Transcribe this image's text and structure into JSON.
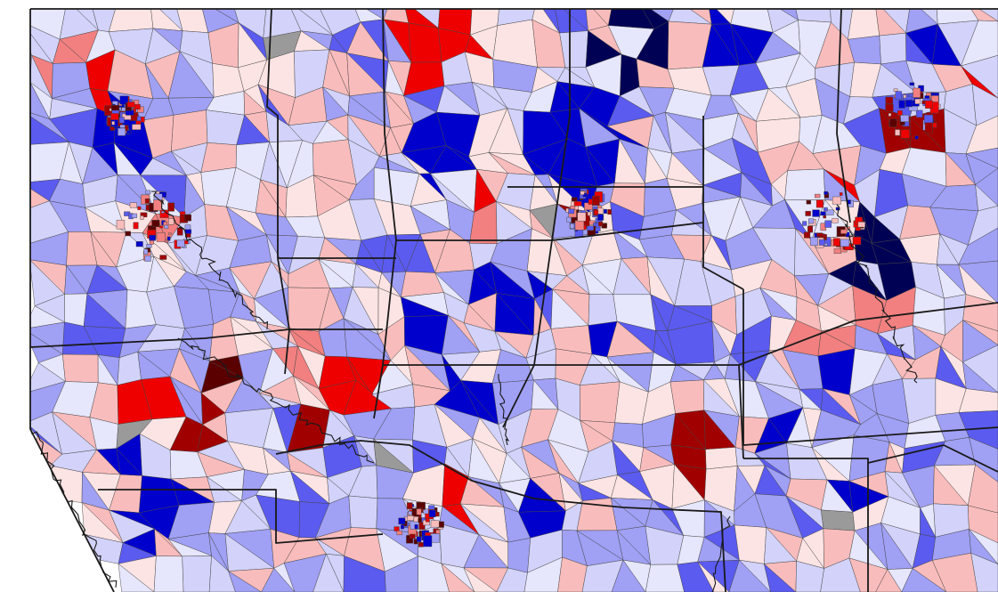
{
  "map": {
    "kind": "precinct choropleth",
    "palette": {
      "dem_5": "#000055",
      "dem_4": "#0000cc",
      "dem_3": "#5b5bf0",
      "dem_2": "#a0a0f5",
      "dem_1": "#d2d2fa",
      "dem_0": "#e6e6fc",
      "rep_0": "#fde4e4",
      "rep_1": "#f9bcbc",
      "rep_2": "#f28080",
      "rep_3": "#ee0000",
      "rep_4": "#a00000",
      "rep_5": "#5a0000",
      "nodata": "#9a9a9a",
      "outside": "#ffffff",
      "boundary": "#1a1a1a"
    }
  }
}
